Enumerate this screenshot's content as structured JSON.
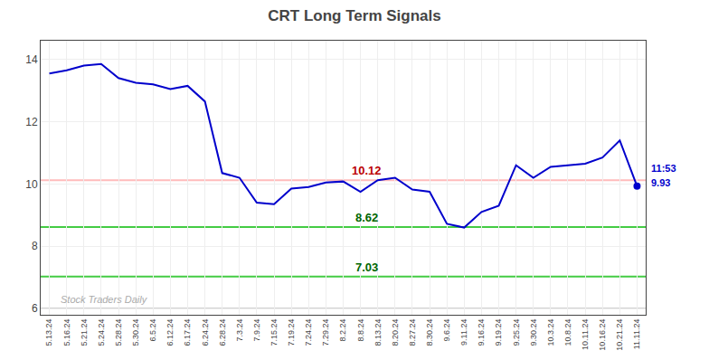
{
  "chart_data": {
    "type": "line",
    "title": "CRT Long Term Signals",
    "categories": [
      "5.13.24",
      "5.16.24",
      "5.21.24",
      "5.24.24",
      "5.28.24",
      "5.30.24",
      "6.5.24",
      "6.12.24",
      "6.17.24",
      "6.24.24",
      "6.28.24",
      "7.3.24",
      "7.9.24",
      "7.15.24",
      "7.19.24",
      "7.24.24",
      "7.29.24",
      "8.2.24",
      "8.8.24",
      "8.13.24",
      "8.20.24",
      "8.27.24",
      "8.30.24",
      "9.6.24",
      "9.11.24",
      "9.16.24",
      "9.19.24",
      "9.25.24",
      "9.30.24",
      "10.3.24",
      "10.8.24",
      "10.11.24",
      "10.16.24",
      "10.21.24",
      "11.11.24"
    ],
    "series": [
      {
        "values": [
          13.55,
          13.65,
          13.8,
          13.85,
          13.4,
          13.25,
          13.2,
          13.05,
          13.15,
          12.65,
          10.35,
          10.2,
          9.4,
          9.35,
          9.85,
          9.9,
          10.05,
          10.08,
          9.75,
          10.12,
          10.2,
          9.82,
          9.75,
          8.72,
          8.6,
          9.1,
          9.3,
          10.6,
          10.2,
          10.55,
          10.6,
          10.65,
          10.85,
          11.4,
          9.93
        ],
        "color": "#0000cc"
      }
    ],
    "last_point": {
      "color": "#0000cc",
      "labels": [
        "11:53",
        "9.93"
      ],
      "label_color": "#0000cc"
    },
    "hlines": [
      {
        "y": 10.12,
        "color": "#ffbbbb",
        "label": "10.12",
        "label_color": "#bb0000"
      },
      {
        "y": 8.62,
        "color": "#44cc44",
        "label": "8.62",
        "label_color": "#006600"
      },
      {
        "y": 7.03,
        "color": "#44cc44",
        "label": "7.03",
        "label_color": "#006600"
      },
      {
        "y": 6.0,
        "color": "#888888"
      }
    ],
    "watermark": {
      "text": "Stock Traders Daily",
      "color": "#aaaaaa"
    },
    "ylim": [
      5.8,
      14.6
    ],
    "yticks": [
      6,
      8,
      10,
      12,
      14
    ],
    "grid": true
  }
}
